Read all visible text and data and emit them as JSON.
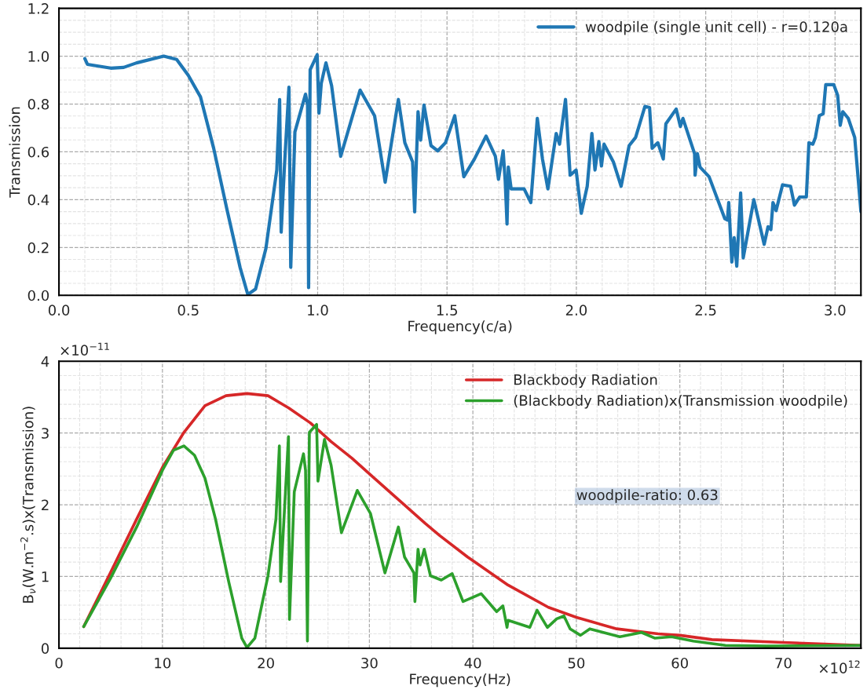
{
  "chart_data": [
    {
      "type": "line",
      "xlabel": "Frequency(c/a)",
      "ylabel": "Transmission",
      "xlim": [
        0,
        3.1
      ],
      "ylim": [
        0,
        1.2
      ],
      "xticks": [
        {
          "value": 0,
          "label": "0.0"
        },
        0.5,
        {
          "value": 1,
          "label": "1.0"
        },
        1.5,
        {
          "value": 2,
          "label": "2.0"
        },
        2.5,
        {
          "value": 3,
          "label": "3.0"
        }
      ],
      "yticks": [
        {
          "value": 0,
          "label": "0.0"
        },
        0.2,
        0.4,
        0.6,
        0.8,
        {
          "value": 1,
          "label": "1.0"
        },
        1.2
      ],
      "grid": true,
      "legend": "top right",
      "marker": "none",
      "line_style": "solid",
      "series": [
        {
          "name": "woodpile (single unit cell) - r=0.120a",
          "color": "#1f77b4",
          "x": [
            0.1,
            0.11,
            0.2,
            0.25,
            0.3,
            0.405,
            0.455,
            0.5,
            0.547,
            0.598,
            0.648,
            0.7,
            0.73,
            0.76,
            0.8,
            0.842,
            0.853,
            0.859,
            0.872,
            0.889,
            0.896,
            0.912,
            0.953,
            0.961,
            0.965,
            0.971,
            0.998,
            1.005,
            1.014,
            1.032,
            1.054,
            1.089,
            1.164,
            1.22,
            1.261,
            1.312,
            1.337,
            1.367,
            1.375,
            1.388,
            1.398,
            1.411,
            1.438,
            1.464,
            1.494,
            1.53,
            1.565,
            1.606,
            1.651,
            1.687,
            1.699,
            1.717,
            1.725,
            1.732,
            1.737,
            1.748,
            1.798,
            1.824,
            1.849,
            1.869,
            1.89,
            1.922,
            1.935,
            1.958,
            1.976,
            1.999,
            2.019,
            2.042,
            2.06,
            2.072,
            2.087,
            2.097,
            2.107,
            2.143,
            2.173,
            2.204,
            2.229,
            2.265,
            2.283,
            2.293,
            2.315,
            2.336,
            2.346,
            2.386,
            2.402,
            2.412,
            2.457,
            2.459,
            2.468,
            2.478,
            2.513,
            2.574,
            2.584,
            2.589,
            2.601,
            2.61,
            2.62,
            2.635,
            2.645,
            2.686,
            2.726,
            2.741,
            2.752,
            2.76,
            2.772,
            2.797,
            2.828,
            2.843,
            2.863,
            2.889,
            2.899,
            2.914,
            2.924,
            2.939,
            2.954,
            2.964,
            2.995,
            3.01,
            3.02,
            3.03,
            3.051,
            3.076,
            3.1
          ],
          "values": [
            0.99,
            0.966,
            0.95,
            0.953,
            0.972,
            1.0,
            0.986,
            0.92,
            0.83,
            0.615,
            0.366,
            0.117,
            0.003,
            0.026,
            0.196,
            0.524,
            0.819,
            0.264,
            0.547,
            0.87,
            0.117,
            0.683,
            0.841,
            0.796,
            0.032,
            0.943,
            1.006,
            0.762,
            0.887,
            0.972,
            0.876,
            0.581,
            0.858,
            0.751,
            0.473,
            0.819,
            0.638,
            0.558,
            0.349,
            0.768,
            0.649,
            0.796,
            0.626,
            0.604,
            0.638,
            0.751,
            0.496,
            0.57,
            0.666,
            0.581,
            0.485,
            0.604,
            0.479,
            0.298,
            0.536,
            0.445,
            0.445,
            0.388,
            0.74,
            0.57,
            0.445,
            0.677,
            0.632,
            0.819,
            0.502,
            0.524,
            0.343,
            0.456,
            0.677,
            0.524,
            0.643,
            0.541,
            0.632,
            0.558,
            0.456,
            0.626,
            0.66,
            0.79,
            0.785,
            0.615,
            0.638,
            0.57,
            0.717,
            0.779,
            0.706,
            0.74,
            0.592,
            0.502,
            0.592,
            0.536,
            0.496,
            0.32,
            0.315,
            0.388,
            0.139,
            0.241,
            0.122,
            0.428,
            0.156,
            0.4,
            0.213,
            0.287,
            0.275,
            0.388,
            0.354,
            0.462,
            0.456,
            0.377,
            0.411,
            0.411,
            0.638,
            0.632,
            0.66,
            0.751,
            0.759,
            0.881,
            0.881,
            0.836,
            0.711,
            0.768,
            0.74,
            0.66,
            0.35
          ]
        }
      ]
    },
    {
      "type": "line",
      "xlabel": "Frequency(Hz)",
      "ylabel": "B$_{ν}$(W.m$^{−2}$.s)x(Transmission)",
      "xlim": [
        0,
        77.5
      ],
      "ylim": [
        0,
        4
      ],
      "xticks": [
        0,
        10,
        20,
        30,
        40,
        50,
        60,
        70
      ],
      "yticks": [
        0,
        1,
        2,
        3,
        4
      ],
      "grid": true,
      "legend": "top right",
      "marker": "none",
      "line_style": "solid",
      "annotations": [
        "×10$^{−11}$",
        "×10$^{12}$",
        "woodpile-ratio: 0.63"
      ],
      "series": [
        {
          "name": "Blackbody Radiation",
          "color": "#d62728",
          "x": [
            2.39,
            4.97,
            7.51,
            10.0,
            12.08,
            14.11,
            16.14,
            18.17,
            20.2,
            22.2,
            24.3,
            26.3,
            28.3,
            30.4,
            32.9,
            35.4,
            36.8,
            39.5,
            40,
            43.4,
            47.3,
            50,
            53.9,
            57.9,
            60,
            63.1,
            70,
            77.5
          ],
          "values": [
            0.3,
            1.05,
            1.8,
            2.52,
            3.01,
            3.38,
            3.52,
            3.55,
            3.52,
            3.35,
            3.14,
            2.88,
            2.65,
            2.38,
            2.06,
            1.74,
            1.57,
            1.27,
            1.22,
            0.88,
            0.57,
            0.43,
            0.27,
            0.2,
            0.18,
            0.12,
            0.08,
            0.04
          ]
        },
        {
          "name": "(Blackbody Radiation)x(Transmission woodpile)",
          "color": "#2ca02c",
          "x": [
            2.39,
            4.97,
            7.51,
            10.0,
            11.07,
            12.08,
            13.1,
            14.11,
            15.13,
            16.4,
            17.67,
            18.17,
            18.93,
            20.2,
            20.97,
            21.3,
            21.42,
            21.73,
            22.18,
            22.28,
            22.74,
            23.63,
            23.83,
            24.01,
            24.2,
            24.9,
            25.03,
            25.66,
            26.3,
            27.3,
            28.83,
            30.1,
            31.5,
            32.8,
            33.4,
            34.3,
            34.4,
            34.7,
            34.9,
            35.3,
            35.9,
            36.95,
            38.0,
            39.05,
            40.8,
            42.3,
            42.9,
            43.3,
            43.4,
            45.5,
            46.2,
            47.2,
            48.1,
            48.8,
            49.4,
            50.4,
            51.3,
            52.6,
            54.2,
            56.3,
            57.6,
            59.2,
            61.3,
            64.4,
            68.4,
            77.5
          ],
          "values": [
            0.3,
            0.97,
            1.69,
            2.48,
            2.76,
            2.82,
            2.69,
            2.37,
            1.8,
            0.93,
            0.14,
            0.01,
            0.14,
            1.01,
            1.8,
            2.82,
            0.93,
            1.76,
            2.95,
            0.4,
            2.18,
            2.71,
            2.48,
            0.1,
            3.01,
            3.12,
            2.33,
            2.91,
            2.55,
            1.61,
            2.2,
            1.88,
            1.05,
            1.69,
            1.27,
            1.05,
            0.65,
            1.38,
            1.16,
            1.38,
            1.01,
            0.95,
            1.04,
            0.65,
            0.76,
            0.51,
            0.59,
            0.29,
            0.39,
            0.29,
            0.53,
            0.29,
            0.41,
            0.45,
            0.27,
            0.18,
            0.27,
            0.22,
            0.16,
            0.22,
            0.14,
            0.16,
            0.1,
            0.04,
            0.03,
            0.04
          ]
        }
      ]
    }
  ]
}
